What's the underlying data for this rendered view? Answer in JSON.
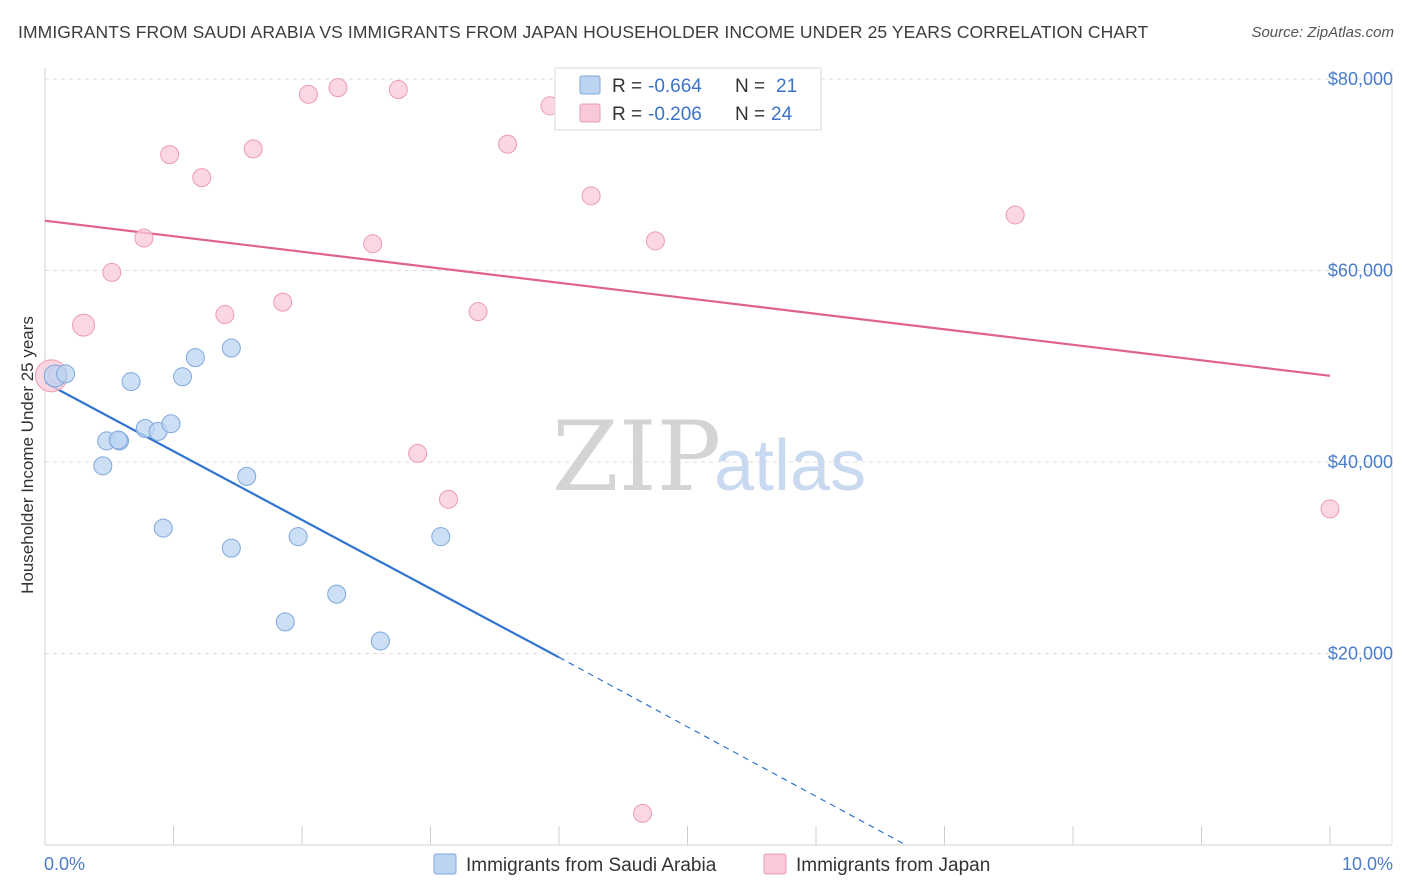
{
  "header": {
    "title": "IMMIGRANTS FROM SAUDI ARABIA VS IMMIGRANTS FROM JAPAN HOUSEHOLDER INCOME UNDER 25 YEARS CORRELATION CHART",
    "source": "Source: ZipAtlas.com"
  },
  "watermark": {
    "zip": "ZIP",
    "atlas": "atlas"
  },
  "colors": {
    "saudi_fill": "#bcd4f2",
    "saudi_stroke": "#7da7dd",
    "saudi_line": "#2f74d0",
    "japan_fill": "#f9c9d7",
    "japan_stroke": "#ec9bb4",
    "japan_line": "#e0628e",
    "tick_text": "#4a7cc9",
    "grid": "#dddddd"
  },
  "legend": {
    "rows": [
      {
        "r_label": "R = ",
        "r_value": "-0.664",
        "n_label": "N = ",
        "n_value": "21"
      },
      {
        "r_label": "R = ",
        "r_value": "-0.206",
        "n_label": "N = ",
        "n_value": "24"
      }
    ]
  },
  "chart_data": {
    "type": "scatter",
    "title": "IMMIGRANTS FROM SAUDI ARABIA VS IMMIGRANTS FROM JAPAN HOUSEHOLDER INCOME UNDER 25 YEARS CORRELATION CHART",
    "xlabel": "",
    "ylabel": "Householder Income Under 25 years",
    "xlim": [
      0,
      10
    ],
    "ylim": [
      0,
      81000
    ],
    "x_tick_labels": [
      "0.0%",
      "10.0%"
    ],
    "y_ticks": [
      20000,
      40000,
      60000,
      80000
    ],
    "y_tick_labels": [
      "$20,000",
      "$40,000",
      "$60,000",
      "$80,000"
    ],
    "series": [
      {
        "name": "Immigrants from Saudi Arabia",
        "r": -0.664,
        "n": 21,
        "points": [
          [
            0.08,
            49000,
            11
          ],
          [
            0.16,
            49200,
            9
          ],
          [
            0.48,
            42200,
            9
          ],
          [
            0.58,
            42200,
            9
          ],
          [
            0.57,
            42300,
            9
          ],
          [
            0.45,
            39600,
            9
          ],
          [
            0.67,
            48400,
            9
          ],
          [
            0.78,
            43500,
            9
          ],
          [
            0.88,
            43200,
            9
          ],
          [
            0.98,
            44000,
            9
          ],
          [
            1.07,
            48900,
            9
          ],
          [
            1.17,
            50900,
            9
          ],
          [
            1.45,
            51900,
            9
          ],
          [
            1.57,
            38500,
            9
          ],
          [
            0.92,
            33100,
            9
          ],
          [
            1.45,
            31000,
            9
          ],
          [
            1.97,
            32200,
            9
          ],
          [
            1.87,
            23300,
            9
          ],
          [
            2.27,
            26200,
            9
          ],
          [
            2.61,
            21300,
            9
          ],
          [
            3.08,
            32200,
            9
          ]
        ],
        "trend": {
          "x0": 0.0,
          "y0": 48300,
          "x1": 4.0,
          "y1": 19600,
          "dash_to_x": 6.7,
          "dash_to_y": 0
        }
      },
      {
        "name": "Immigrants from Japan",
        "r": -0.206,
        "n": 24,
        "points": [
          [
            0.05,
            49000,
            16
          ],
          [
            0.3,
            54300,
            11
          ],
          [
            0.52,
            59800,
            9
          ],
          [
            0.77,
            63400,
            9
          ],
          [
            0.97,
            72100,
            9
          ],
          [
            1.22,
            69700,
            9
          ],
          [
            1.4,
            55400,
            9
          ],
          [
            1.62,
            72700,
            9
          ],
          [
            1.85,
            56700,
            9
          ],
          [
            2.05,
            78400,
            9
          ],
          [
            2.28,
            79100,
            9
          ],
          [
            2.55,
            62800,
            9
          ],
          [
            2.75,
            78900,
            9
          ],
          [
            2.9,
            40900,
            9
          ],
          [
            3.14,
            36100,
            9
          ],
          [
            3.37,
            55700,
            9
          ],
          [
            3.6,
            73200,
            9
          ],
          [
            3.93,
            77200,
            9
          ],
          [
            4.25,
            67800,
            9
          ],
          [
            4.65,
            3300,
            9
          ],
          [
            4.75,
            63100,
            9
          ],
          [
            7.55,
            65800,
            9
          ],
          [
            10.0,
            35100,
            9
          ],
          [
            0.1,
            49100,
            9
          ]
        ],
        "trend": {
          "x0": 0.0,
          "y0": 65200,
          "x1": 10.0,
          "y1": 49000
        }
      }
    ]
  }
}
